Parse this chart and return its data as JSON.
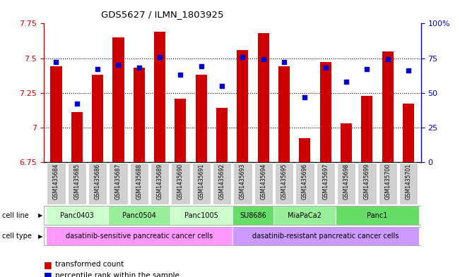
{
  "title": "GDS5627 / ILMN_1803925",
  "samples": [
    "GSM1435684",
    "GSM1435685",
    "GSM1435686",
    "GSM1435687",
    "GSM1435688",
    "GSM1435689",
    "GSM1435690",
    "GSM1435691",
    "GSM1435692",
    "GSM1435693",
    "GSM1435694",
    "GSM1435695",
    "GSM1435696",
    "GSM1435697",
    "GSM1435698",
    "GSM1435699",
    "GSM1435700",
    "GSM1435701"
  ],
  "bar_values": [
    7.44,
    7.11,
    7.38,
    7.65,
    7.43,
    7.69,
    7.21,
    7.38,
    7.14,
    7.56,
    7.68,
    7.44,
    6.92,
    7.47,
    7.03,
    7.23,
    7.55,
    7.17
  ],
  "dot_values": [
    72,
    42,
    67,
    70,
    68,
    76,
    63,
    69,
    55,
    76,
    74,
    72,
    47,
    68,
    58,
    67,
    74,
    66
  ],
  "y_min": 6.75,
  "y_max": 7.75,
  "y_ticks": [
    6.75,
    7.0,
    7.25,
    7.5,
    7.75
  ],
  "y_tick_labels": [
    "6.75",
    "7",
    "7.25",
    "7.5",
    "7.75"
  ],
  "right_y_ticks": [
    0,
    25,
    50,
    75,
    100
  ],
  "right_y_labels": [
    "0",
    "25",
    "50",
    "75",
    "100%"
  ],
  "bar_color": "#cc0000",
  "dot_color": "#0000cc",
  "cell_lines": [
    {
      "label": "Panc0403",
      "start": 0,
      "end": 2,
      "color": "#ccffcc"
    },
    {
      "label": "Panc0504",
      "start": 3,
      "end": 5,
      "color": "#99ee99"
    },
    {
      "label": "Panc1005",
      "start": 6,
      "end": 8,
      "color": "#ccffcc"
    },
    {
      "label": "SU8686",
      "start": 9,
      "end": 10,
      "color": "#66dd66"
    },
    {
      "label": "MiaPaCa2",
      "start": 11,
      "end": 13,
      "color": "#99ee99"
    },
    {
      "label": "Panc1",
      "start": 14,
      "end": 17,
      "color": "#66dd66"
    }
  ],
  "cell_types": [
    {
      "label": "dasatinib-sensitive pancreatic cancer cells",
      "start": 0,
      "end": 8,
      "color": "#ff99ff"
    },
    {
      "label": "dasatinib-resistant pancreatic cancer cells",
      "start": 9,
      "end": 17,
      "color": "#cc99ff"
    }
  ],
  "legend_bar_label": "transformed count",
  "legend_dot_label": "percentile rank within the sample",
  "left_axis_color": "#cc0000",
  "right_axis_color": "#0000cc"
}
